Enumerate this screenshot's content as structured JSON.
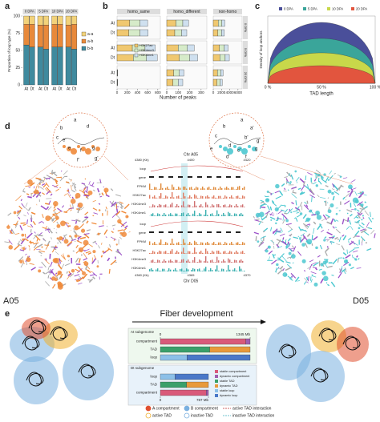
{
  "figure": {
    "a": {
      "label": "a",
      "y_label": "Proportion of loop type (%)",
      "ylim": [
        0,
        100
      ],
      "yticks": [
        0,
        25,
        50,
        75,
        100
      ],
      "groups": [
        "0 DPA",
        "5 DPA",
        "10 DPA",
        "20 DPA"
      ],
      "subgenomes": [
        "At",
        "Dt"
      ],
      "series": [
        {
          "name": "b-b",
          "color": "#3f8a9e",
          "values": [
            58,
            55,
            55,
            52,
            55,
            55,
            55,
            52
          ]
        },
        {
          "name": "a-b",
          "color": "#e8893a",
          "values": [
            30,
            33,
            32,
            35,
            33,
            33,
            32,
            36
          ]
        },
        {
          "name": "a-a",
          "color": "#f2d27a",
          "values": [
            12,
            12,
            13,
            13,
            12,
            12,
            13,
            12
          ]
        }
      ]
    },
    "b": {
      "label": "b",
      "x_label": "Number of peaks",
      "rows": [
        "0 DPA",
        "5 DPA",
        "20 DPA"
      ],
      "subgenomes": [
        "At",
        "Dt"
      ],
      "legend": [
        {
          "name": "H3K27ac",
          "color": "#f0c870"
        },
        {
          "name": "H3K4me3",
          "color": "#d6ebc9"
        },
        {
          "name": "H3K4me1",
          "color": "#cfe0ef"
        }
      ],
      "facets": [
        {
          "title": "homo_same",
          "xlim": [
            0,
            850
          ],
          "xticks": [
            0,
            200,
            400,
            600,
            800
          ],
          "series": [
            [
              250,
              230,
              300,
              320,
              5,
              5
            ],
            [
              200,
              220,
              250,
              260,
              3,
              3
            ],
            [
              150,
              160,
              200,
              210,
              2,
              2
            ]
          ]
        },
        {
          "title": "homo_different",
          "xlim": [
            0,
            350
          ],
          "xticks": [
            0,
            100,
            200,
            300
          ],
          "series": [
            [
              80,
              70,
              100,
              110,
              60,
              55
            ],
            [
              60,
              60,
              80,
              90,
              50,
              45
            ],
            [
              50,
              45,
              60,
              70,
              40,
              40
            ]
          ]
        },
        {
          "title": "non-homo",
          "xlim": [
            0,
            7000
          ],
          "xticks": [
            0,
            2000,
            4000,
            6000
          ],
          "series": [
            [
              1200,
              1100,
              1500,
              1600,
              1000,
              900
            ],
            [
              900,
              900,
              1200,
              1300,
              800,
              800
            ],
            [
              700,
              700,
              900,
              1000,
              600,
              500
            ]
          ]
        }
      ]
    },
    "c": {
      "label": "c",
      "y_label": "Density of loop anchors",
      "x_label": "TAD length",
      "xticks": [
        "0 %",
        "50 %",
        "100 %"
      ],
      "legend": [
        {
          "name": "0 DPA",
          "color": "#4a4f9a"
        },
        {
          "name": "5 DPA",
          "color": "#3aa59a"
        },
        {
          "name": "10 DPA",
          "color": "#c8d84a"
        },
        {
          "name": "20 DPA",
          "color": "#e2553e"
        }
      ]
    },
    "d": {
      "label": "d",
      "left": "A05",
      "right": "D05",
      "top_chr": "Chr A05",
      "bottom_chr": "Chr D05",
      "top_ticks": [
        "4380 (Kb)",
        "4400",
        "4420"
      ],
      "bottom_ticks": [
        "4360 (Kb)",
        "4365",
        "4370"
      ],
      "tracks": [
        "loop",
        "gene",
        "FPKM",
        "H3K27ac",
        "H3K4me3",
        "H3K4me1"
      ],
      "left_letters": [
        "a",
        "b",
        "c",
        "d",
        "e",
        "f",
        "g",
        "e'",
        "f'",
        "g'"
      ],
      "right_letters": [
        "a",
        "b",
        "c",
        "d",
        "a'",
        "b'",
        "c'",
        "d'",
        "e",
        "f",
        "g",
        "g'"
      ]
    },
    "e": {
      "label": "e",
      "title": "Fiber development",
      "sections": [
        {
          "name": "At subgenome",
          "xlim": [
            0,
            1345
          ],
          "xticks": [
            0,
            {
              "value": 1345,
              "label": "1345 Mb"
            }
          ],
          "rows": [
            {
              "name": "compartment",
              "colors": [
                "#d95a7a",
                "#a05fb0"
              ],
              "values": [
                1280,
                65
              ]
            },
            {
              "name": "TAD",
              "colors": [
                "#3aa06a",
                "#e89a3a"
              ],
              "values": [
                740,
                605
              ]
            },
            {
              "name": "loop",
              "colors": [
                "#8cc0e8",
                "#4a78c8"
              ],
              "values": [
                400,
                945
              ]
            }
          ]
        },
        {
          "name": "Dt subgenome",
          "xlim": [
            0,
            787
          ],
          "xticks": [
            0,
            {
              "value": 787,
              "label": "787 Mb"
            }
          ],
          "rows": [
            {
              "name": "loop",
              "colors": [
                "#8cc0e8",
                "#4a78c8"
              ],
              "values": [
                240,
                547
              ]
            },
            {
              "name": "TAD",
              "colors": [
                "#3aa06a",
                "#e89a3a"
              ],
              "values": [
                430,
                357
              ]
            },
            {
              "name": "compartment",
              "colors": [
                "#d95a7a",
                "#a05fb0"
              ],
              "values": [
                750,
                37
              ]
            }
          ]
        }
      ],
      "legend": [
        {
          "name": "stable compartment",
          "color": "#d95a7a"
        },
        {
          "name": "dynamic compartment",
          "color": "#a05fb0"
        },
        {
          "name": "stable TAD",
          "color": "#3aa06a"
        },
        {
          "name": "dynamic TAD",
          "color": "#e89a3a"
        },
        {
          "name": "stable loop",
          "color": "#8cc0e8"
        },
        {
          "name": "dynamic loop",
          "color": "#4a78c8"
        }
      ],
      "key": [
        "A compartment",
        "B compartment",
        "active TAD interaction",
        "active TAD",
        "inactive TAD",
        "inactive TAD interaction"
      ]
    }
  }
}
